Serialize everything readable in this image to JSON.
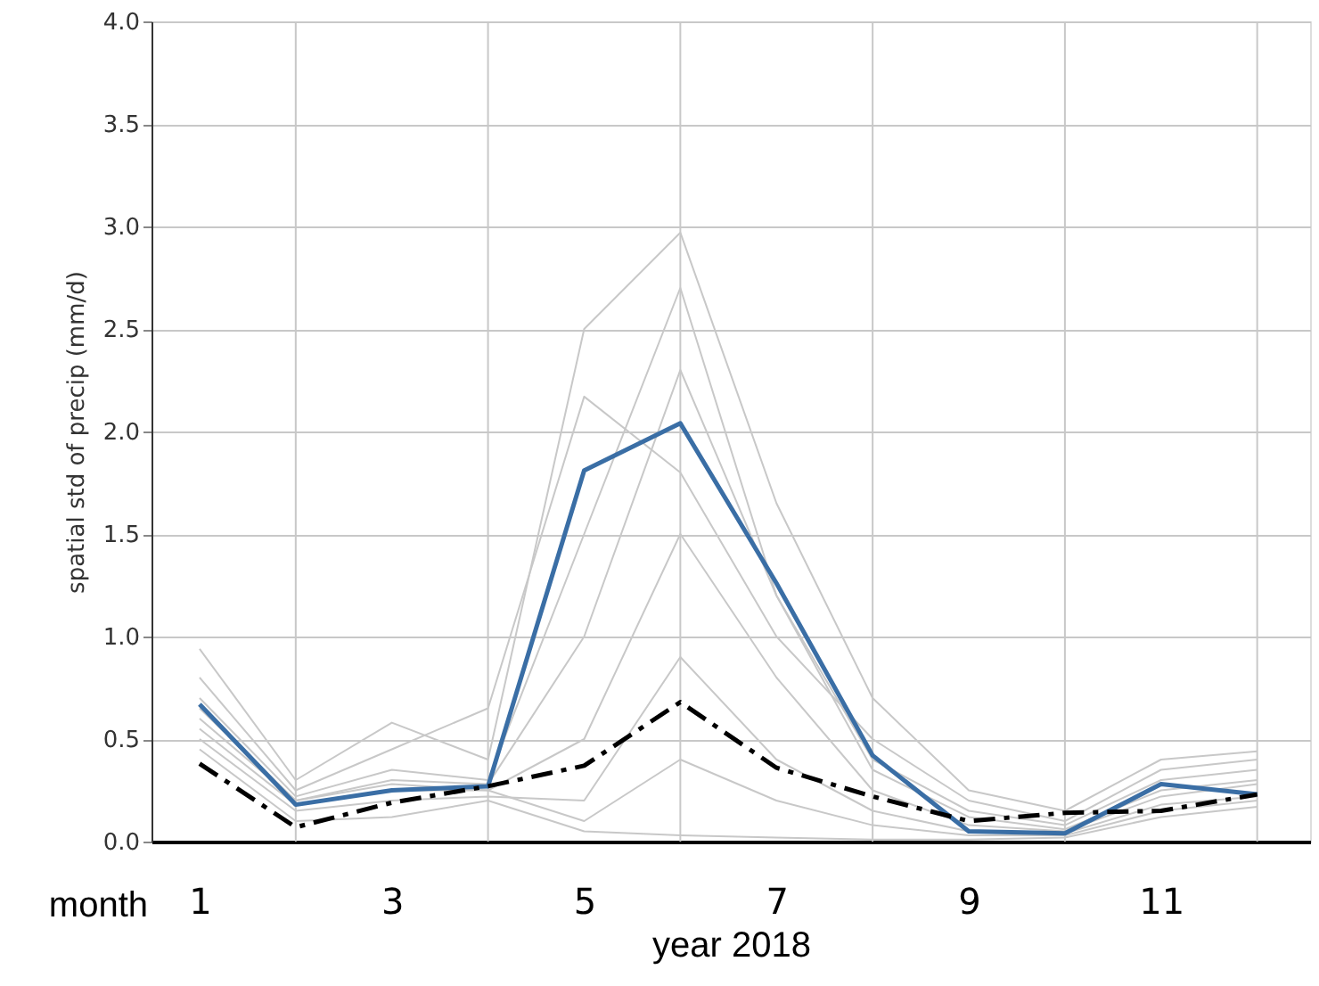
{
  "chart_data": {
    "type": "line",
    "xlabel": "year 2018",
    "ylabel": "spatial std of precip (mm/d)",
    "annotations": [
      "month"
    ],
    "x": [
      1,
      2,
      3,
      4,
      5,
      6,
      7,
      8,
      9,
      10,
      11,
      12
    ],
    "xlim": [
      0.5,
      12.55
    ],
    "xticks": [
      {
        "value": 1,
        "label": "1"
      },
      {
        "value": 2,
        "label": null
      },
      {
        "value": 3,
        "label": "3"
      },
      {
        "value": 4,
        "label": null
      },
      {
        "value": 5,
        "label": "5"
      },
      {
        "value": 6,
        "label": null
      },
      {
        "value": 7,
        "label": "7"
      },
      {
        "value": 8,
        "label": null
      },
      {
        "value": 9,
        "label": "9"
      },
      {
        "value": 10,
        "label": null
      },
      {
        "value": 11,
        "label": "11"
      },
      {
        "value": 12,
        "label": null
      }
    ],
    "ylim": [
      0,
      4
    ],
    "yticks": [
      {
        "value": 0,
        "label": "0.0"
      },
      {
        "value": 0.5,
        "label": "0.5"
      },
      {
        "value": 1,
        "label": "1.0"
      },
      {
        "value": 1.5,
        "label": "1.5"
      },
      {
        "value": 2,
        "label": "2.0"
      },
      {
        "value": 2.5,
        "label": "2.5"
      },
      {
        "value": 3,
        "label": "3.0"
      },
      {
        "value": 3.5,
        "label": "3.5"
      },
      {
        "value": 4,
        "label": "4.0"
      }
    ],
    "grid": true,
    "marker": "none",
    "series": [
      {
        "color": "#c8c8c8",
        "values": [
          0.94,
          0.3,
          0.58,
          0.4,
          2.5,
          2.97,
          1.65,
          0.7,
          0.25,
          0.15,
          0.4,
          0.44
        ]
      },
      {
        "color": "#c8c8c8",
        "values": [
          0.45,
          0.1,
          0.12,
          0.2,
          0.05,
          0.03,
          0.02,
          0.01,
          0.01,
          0.02,
          0.12,
          0.17
        ]
      },
      {
        "color": "#c8c8c8",
        "values": [
          0.8,
          0.25,
          0.45,
          0.65,
          2.17,
          1.8,
          1.0,
          0.5,
          0.2,
          0.1,
          0.35,
          0.4
        ]
      },
      {
        "color": "#c8c8c8",
        "values": [
          0.7,
          0.22,
          0.35,
          0.3,
          1.5,
          2.7,
          1.2,
          0.4,
          0.15,
          0.08,
          0.3,
          0.35
        ]
      },
      {
        "color": "#c8c8c8",
        "values": [
          0.6,
          0.2,
          0.3,
          0.28,
          1.0,
          2.3,
          1.2,
          0.35,
          0.12,
          0.06,
          0.25,
          0.3
        ]
      },
      {
        "color": "#c8c8c8",
        "values": [
          0.55,
          0.18,
          0.25,
          0.25,
          0.5,
          1.5,
          0.8,
          0.25,
          0.08,
          0.05,
          0.22,
          0.28
        ]
      },
      {
        "color": "#c8c8c8",
        "values": [
          0.5,
          0.15,
          0.2,
          0.22,
          0.2,
          0.9,
          0.4,
          0.15,
          0.05,
          0.04,
          0.18,
          0.22
        ]
      },
      {
        "color": "#c8c8c8",
        "values": [
          0.65,
          0.2,
          0.28,
          0.25,
          0.1,
          0.4,
          0.2,
          0.08,
          0.03,
          0.03,
          0.15,
          0.2
        ]
      },
      {
        "color": "#3a6ea5",
        "values": [
          0.67,
          0.18,
          0.25,
          0.27,
          1.81,
          2.04,
          1.26,
          0.42,
          0.05,
          0.04,
          0.28,
          0.23
        ]
      },
      {
        "color": "#000000",
        "line_style": "dashed",
        "values": [
          0.38,
          0.07,
          0.19,
          0.27,
          0.37,
          0.68,
          0.36,
          0.22,
          0.1,
          0.14,
          0.15,
          0.23
        ]
      }
    ]
  }
}
